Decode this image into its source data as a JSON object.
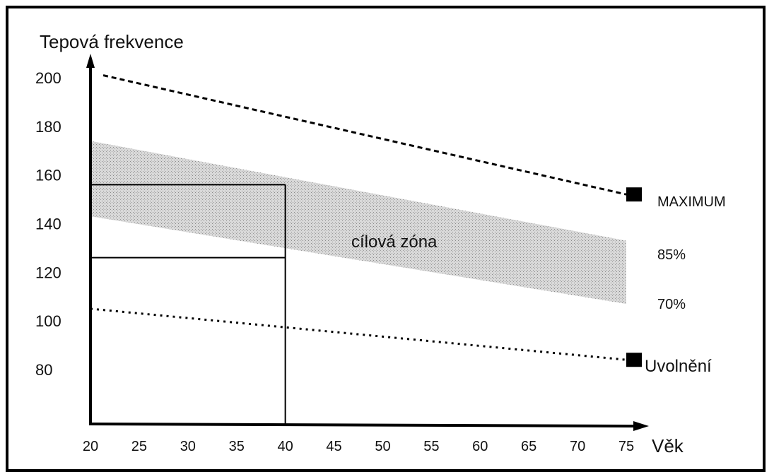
{
  "chart_data": {
    "type": "line",
    "ylabel": "Tepová frekvence",
    "xlabel": "Věk",
    "x_ticks": [
      20,
      25,
      30,
      35,
      40,
      45,
      50,
      55,
      60,
      65,
      70,
      75
    ],
    "y_ticks": [
      80,
      100,
      120,
      140,
      160,
      180,
      200
    ],
    "xlim": [
      20,
      75
    ],
    "ylim": [
      60,
      205
    ],
    "grid": false,
    "series": [
      {
        "name": "MAXIMUM",
        "style": "dashed",
        "x": [
          20,
          75
        ],
        "y": [
          201,
          152
        ],
        "marker_end": "square"
      },
      {
        "name": "Uvolnění",
        "style": "dotted",
        "x": [
          20,
          75
        ],
        "y": [
          105,
          84
        ],
        "marker_end": "square"
      }
    ],
    "zone": {
      "label": "cílová zóna",
      "upper_label": "85%",
      "lower_label": "70%",
      "upper": {
        "x": [
          20,
          75
        ],
        "y": [
          174,
          133
        ]
      },
      "lower": {
        "x": [
          20,
          75
        ],
        "y": [
          143,
          107
        ]
      },
      "color": "#c9c9c9"
    },
    "example_box": {
      "x_end": 40,
      "y_top": 156,
      "y_mid": 126
    }
  }
}
